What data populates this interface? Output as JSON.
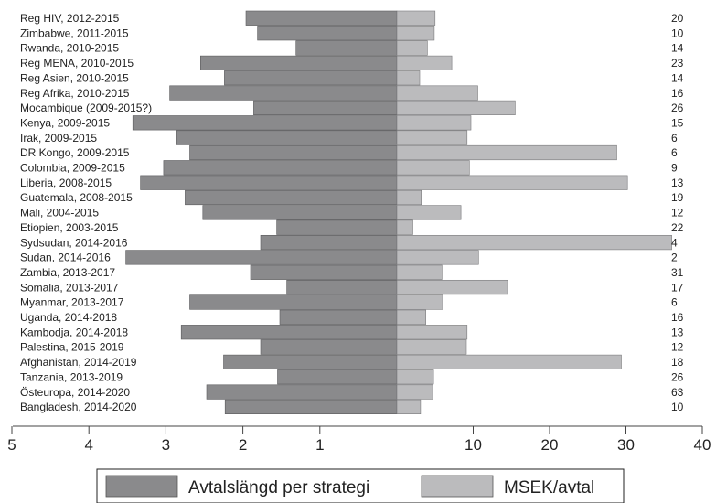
{
  "chart_data": {
    "type": "bar",
    "orientation": "horizontal-diverging",
    "categories": [
      "Reg HIV, 2012-2015",
      "Zimbabwe, 2011-2015",
      "Rwanda, 2010-2015",
      "Reg MENA, 2010-2015",
      "Reg Asien, 2010-2015",
      "Reg Afrika, 2010-2015",
      "Mocambique (2009-2015?)",
      "Kenya, 2009-2015",
      "Irak, 2009-2015",
      "DR Kongo, 2009-2015",
      "Colombia, 2009-2015",
      "Liberia, 2008-2015",
      "Guatemala, 2008-2015",
      "Mali, 2004-2015",
      "Etiopien, 2003-2015",
      "Sydsudan, 2014-2016",
      "Sudan, 2014-2016",
      "Zambia, 2013-2017",
      "Somalia, 2013-2017",
      "Myanmar, 2013-2017",
      "Uganda, 2014-2018",
      "Kambodja, 2014-2018",
      "Palestina, 2015-2019",
      "Afghanistan, 2014-2019",
      "Tanzania, 2013-2019",
      "Östeuropa, 2014-2020",
      "Bangladesh, 2014-2020"
    ],
    "series": [
      {
        "name": "Avtalslängd per strategi",
        "color": "#8a8a8c",
        "values": [
          1.96,
          1.81,
          1.31,
          2.55,
          2.24,
          2.95,
          1.86,
          3.43,
          2.86,
          2.69,
          3.03,
          3.33,
          2.75,
          2.52,
          1.56,
          1.77,
          3.52,
          1.9,
          1.43,
          2.69,
          1.52,
          2.8,
          1.77,
          2.25,
          1.55,
          2.47,
          2.23
        ],
        "axis": {
          "ticks": [
            5,
            4,
            3,
            2,
            1
          ],
          "range": [
            0,
            5
          ]
        }
      },
      {
        "name": "MSEK/avtal",
        "color": "#bbbbbd",
        "values": [
          5,
          4.9,
          4,
          7.2,
          3,
          10.6,
          15.5,
          9.7,
          9.2,
          28.8,
          9.5,
          30.2,
          3.2,
          8.4,
          2.1,
          36,
          10.7,
          5.9,
          14.5,
          6,
          3.8,
          9.2,
          9.1,
          29.4,
          4.8,
          4.7,
          3.1
        ],
        "axis": {
          "ticks": [
            10,
            20,
            30,
            40
          ],
          "range": [
            0,
            40
          ]
        }
      }
    ],
    "counts": [
      "20",
      "10",
      "14",
      "23",
      "14",
      "16",
      "26",
      "15",
      "6",
      "6",
      "9",
      "13",
      "19",
      "12",
      "22",
      "4",
      "2",
      "31",
      "17",
      "6",
      "16",
      "13",
      "12",
      "18",
      "26",
      "63",
      "10"
    ],
    "legend": [
      "Avtalslängd per strategi",
      "MSEK/avtal"
    ],
    "legend_position": "bottom",
    "title": "",
    "xlabel": "",
    "ylabel": ""
  }
}
